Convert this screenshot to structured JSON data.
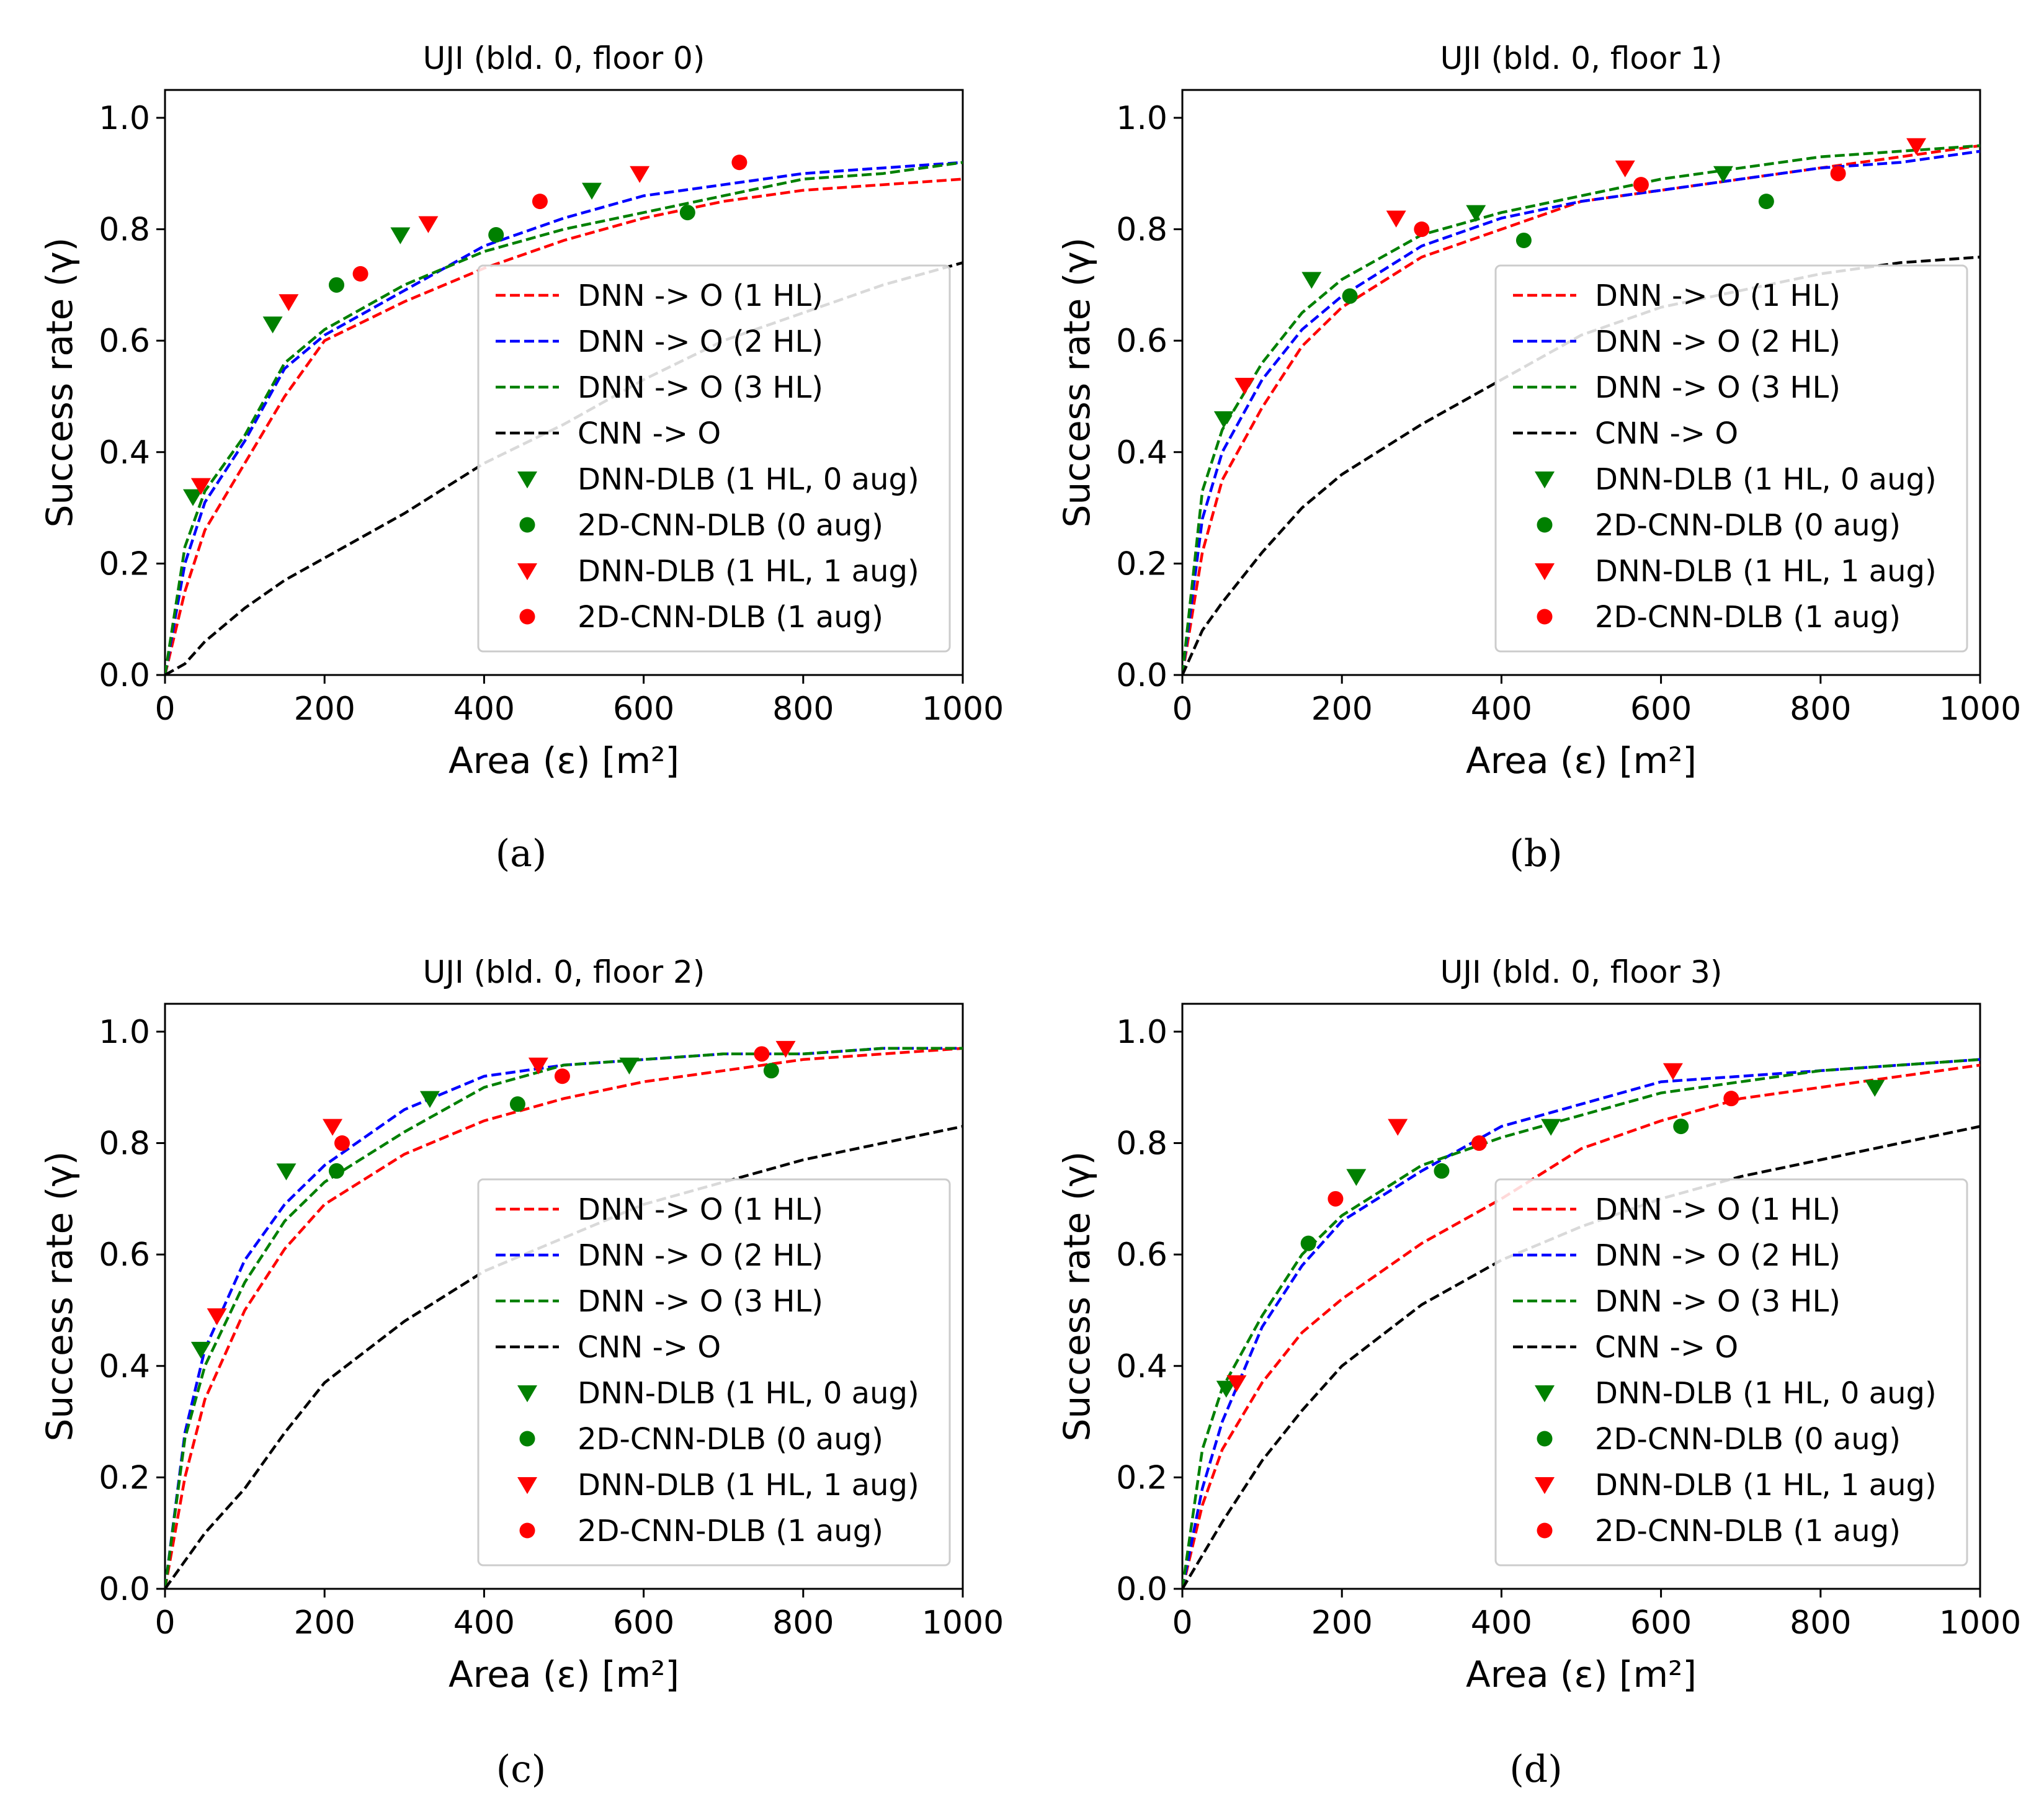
{
  "figure": {
    "panels": [
      "a",
      "b",
      "c",
      "d"
    ]
  },
  "chart_data": [
    {
      "type": "line",
      "title": "UJI (bld. 0, floor 0)",
      "caption": "(a)",
      "xlabel": "Area (ε) [m²]",
      "ylabel": "Success rate (γ)",
      "xlim": [
        0,
        1000
      ],
      "ylim": [
        0,
        1.05
      ],
      "xticks": [
        "0",
        "200",
        "400",
        "600",
        "800",
        "1000"
      ],
      "yticks": [
        "0.0",
        "0.2",
        "0.4",
        "0.6",
        "0.8",
        "1.0"
      ],
      "grid": false,
      "legend_position": "center-right",
      "legend": [
        "DNN -> O (1 HL)",
        "DNN -> O (2 HL)",
        "DNN -> O (3 HL)",
        "CNN -> O",
        "DNN-DLB (1 HL, 0 aug)",
        "2D-CNN-DLB (0 aug)",
        "DNN-DLB (1 HL, 1 aug)",
        "2D-CNN-DLB (1 aug)"
      ],
      "series": [
        {
          "name": "DNN -> O (1 HL)",
          "kind": "line",
          "color": "#ff0000",
          "x": [
            0,
            25,
            50,
            100,
            150,
            200,
            300,
            400,
            500,
            600,
            700,
            800,
            900,
            1000
          ],
          "y": [
            0,
            0.15,
            0.26,
            0.38,
            0.5,
            0.6,
            0.67,
            0.73,
            0.78,
            0.82,
            0.85,
            0.87,
            0.88,
            0.89
          ]
        },
        {
          "name": "DNN -> O (2 HL)",
          "kind": "line",
          "color": "#0000ff",
          "x": [
            0,
            25,
            50,
            100,
            150,
            200,
            300,
            400,
            500,
            600,
            700,
            800,
            900,
            1000
          ],
          "y": [
            0,
            0.2,
            0.31,
            0.42,
            0.55,
            0.61,
            0.69,
            0.77,
            0.82,
            0.86,
            0.88,
            0.9,
            0.91,
            0.92
          ]
        },
        {
          "name": "DNN -> O (3 HL)",
          "kind": "line",
          "color": "#008000",
          "x": [
            0,
            25,
            50,
            100,
            150,
            200,
            300,
            400,
            500,
            600,
            700,
            800,
            900,
            1000
          ],
          "y": [
            0,
            0.23,
            0.33,
            0.43,
            0.56,
            0.62,
            0.7,
            0.76,
            0.8,
            0.83,
            0.86,
            0.89,
            0.9,
            0.92
          ]
        },
        {
          "name": "CNN -> O",
          "kind": "line",
          "color": "#000000",
          "x": [
            0,
            25,
            50,
            100,
            150,
            200,
            300,
            400,
            500,
            600,
            700,
            800,
            900,
            1000
          ],
          "y": [
            0,
            0.02,
            0.06,
            0.12,
            0.17,
            0.21,
            0.29,
            0.38,
            0.45,
            0.53,
            0.6,
            0.65,
            0.7,
            0.74
          ]
        },
        {
          "name": "DNN-DLB (1 HL, 0 aug)",
          "kind": "marker",
          "marker": "triangle-down",
          "color": "#008000",
          "x": [
            35,
            135,
            295,
            535
          ],
          "y": [
            0.32,
            0.63,
            0.79,
            0.87
          ]
        },
        {
          "name": "2D-CNN-DLB (0 aug)",
          "kind": "marker",
          "marker": "circle",
          "color": "#008000",
          "x": [
            215,
            415,
            655
          ],
          "y": [
            0.7,
            0.79,
            0.83
          ]
        },
        {
          "name": "DNN-DLB (1 HL, 1 aug)",
          "kind": "marker",
          "marker": "triangle-down",
          "color": "#ff0000",
          "x": [
            45,
            155,
            330,
            595
          ],
          "y": [
            0.34,
            0.67,
            0.81,
            0.9
          ]
        },
        {
          "name": "2D-CNN-DLB (1 aug)",
          "kind": "marker",
          "marker": "circle",
          "color": "#ff0000",
          "x": [
            245,
            470,
            720
          ],
          "y": [
            0.72,
            0.85,
            0.92
          ]
        }
      ]
    },
    {
      "type": "line",
      "title": "UJI (bld. 0, floor 1)",
      "caption": "(b)",
      "xlabel": "Area (ε) [m²]",
      "ylabel": "Success rate (γ)",
      "xlim": [
        0,
        1000
      ],
      "ylim": [
        0,
        1.05
      ],
      "xticks": [
        "0",
        "200",
        "400",
        "600",
        "800",
        "1000"
      ],
      "yticks": [
        "0.0",
        "0.2",
        "0.4",
        "0.6",
        "0.8",
        "1.0"
      ],
      "grid": false,
      "legend_position": "center-right",
      "legend": [
        "DNN -> O (1 HL)",
        "DNN -> O (2 HL)",
        "DNN -> O (3 HL)",
        "CNN -> O",
        "DNN-DLB (1 HL, 0 aug)",
        "2D-CNN-DLB (0 aug)",
        "DNN-DLB (1 HL, 1 aug)",
        "2D-CNN-DLB (1 aug)"
      ],
      "series": [
        {
          "name": "DNN -> O (1 HL)",
          "kind": "line",
          "color": "#ff0000",
          "x": [
            0,
            25,
            50,
            100,
            150,
            200,
            300,
            400,
            500,
            600,
            700,
            800,
            900,
            1000
          ],
          "y": [
            0,
            0.22,
            0.35,
            0.48,
            0.59,
            0.66,
            0.75,
            0.8,
            0.85,
            0.87,
            0.89,
            0.91,
            0.93,
            0.95
          ]
        },
        {
          "name": "DNN -> O (2 HL)",
          "kind": "line",
          "color": "#0000ff",
          "x": [
            0,
            25,
            50,
            100,
            150,
            200,
            300,
            400,
            500,
            600,
            700,
            800,
            900,
            1000
          ],
          "y": [
            0,
            0.28,
            0.4,
            0.53,
            0.62,
            0.68,
            0.77,
            0.82,
            0.85,
            0.87,
            0.89,
            0.91,
            0.92,
            0.94
          ]
        },
        {
          "name": "DNN -> O (3 HL)",
          "kind": "line",
          "color": "#008000",
          "x": [
            0,
            25,
            50,
            100,
            150,
            200,
            300,
            400,
            500,
            600,
            700,
            800,
            900,
            1000
          ],
          "y": [
            0,
            0.33,
            0.44,
            0.56,
            0.65,
            0.71,
            0.79,
            0.83,
            0.86,
            0.89,
            0.91,
            0.93,
            0.94,
            0.95
          ]
        },
        {
          "name": "CNN -> O",
          "kind": "line",
          "color": "#000000",
          "x": [
            0,
            25,
            50,
            100,
            150,
            200,
            300,
            400,
            500,
            600,
            700,
            800,
            900,
            1000
          ],
          "y": [
            0,
            0.08,
            0.13,
            0.22,
            0.3,
            0.36,
            0.45,
            0.53,
            0.61,
            0.66,
            0.69,
            0.72,
            0.74,
            0.75
          ]
        },
        {
          "name": "DNN-DLB (1 HL, 0 aug)",
          "kind": "marker",
          "marker": "triangle-down",
          "color": "#008000",
          "x": [
            52,
            162,
            368,
            678
          ],
          "y": [
            0.46,
            0.71,
            0.83,
            0.9
          ]
        },
        {
          "name": "2D-CNN-DLB (0 aug)",
          "kind": "marker",
          "marker": "circle",
          "color": "#008000",
          "x": [
            210,
            428,
            732
          ],
          "y": [
            0.68,
            0.78,
            0.85
          ]
        },
        {
          "name": "DNN-DLB (1 HL, 1 aug)",
          "kind": "marker",
          "marker": "triangle-down",
          "color": "#ff0000",
          "x": [
            78,
            268,
            555,
            920
          ],
          "y": [
            0.52,
            0.82,
            0.91,
            0.95
          ]
        },
        {
          "name": "2D-CNN-DLB (1 aug)",
          "kind": "marker",
          "marker": "circle",
          "color": "#ff0000",
          "x": [
            300,
            575,
            822
          ],
          "y": [
            0.8,
            0.88,
            0.9
          ]
        }
      ]
    },
    {
      "type": "line",
      "title": "UJI (bld. 0, floor 2)",
      "caption": "(c)",
      "xlabel": "Area (ε) [m²]",
      "ylabel": "Success rate (γ)",
      "xlim": [
        0,
        1000
      ],
      "ylim": [
        0,
        1.05
      ],
      "xticks": [
        "0",
        "200",
        "400",
        "600",
        "800",
        "1000"
      ],
      "yticks": [
        "0.0",
        "0.2",
        "0.4",
        "0.6",
        "0.8",
        "1.0"
      ],
      "grid": false,
      "legend_position": "center-right",
      "legend": [
        "DNN -> O (1 HL)",
        "DNN -> O (2 HL)",
        "DNN -> O (3 HL)",
        "CNN -> O",
        "DNN-DLB (1 HL, 0 aug)",
        "2D-CNN-DLB (0 aug)",
        "DNN-DLB (1 HL, 1 aug)",
        "2D-CNN-DLB (1 aug)"
      ],
      "series": [
        {
          "name": "DNN -> O (1 HL)",
          "kind": "line",
          "color": "#ff0000",
          "x": [
            0,
            25,
            50,
            100,
            150,
            200,
            300,
            400,
            500,
            600,
            700,
            800,
            900,
            1000
          ],
          "y": [
            0,
            0.2,
            0.34,
            0.5,
            0.61,
            0.69,
            0.78,
            0.84,
            0.88,
            0.91,
            0.93,
            0.95,
            0.96,
            0.97
          ]
        },
        {
          "name": "DNN -> O (2 HL)",
          "kind": "line",
          "color": "#0000ff",
          "x": [
            0,
            25,
            50,
            100,
            150,
            200,
            300,
            400,
            500,
            600,
            700,
            800,
            900,
            1000
          ],
          "y": [
            0,
            0.28,
            0.43,
            0.59,
            0.69,
            0.76,
            0.86,
            0.92,
            0.94,
            0.95,
            0.96,
            0.96,
            0.97,
            0.97
          ]
        },
        {
          "name": "DNN -> O (3 HL)",
          "kind": "line",
          "color": "#008000",
          "x": [
            0,
            25,
            50,
            100,
            150,
            200,
            300,
            400,
            500,
            600,
            700,
            800,
            900,
            1000
          ],
          "y": [
            0,
            0.27,
            0.4,
            0.55,
            0.66,
            0.73,
            0.82,
            0.9,
            0.94,
            0.95,
            0.96,
            0.96,
            0.97,
            0.97
          ]
        },
        {
          "name": "CNN -> O",
          "kind": "line",
          "color": "#000000",
          "x": [
            0,
            25,
            50,
            100,
            150,
            200,
            300,
            400,
            500,
            600,
            700,
            800,
            900,
            1000
          ],
          "y": [
            0,
            0.05,
            0.1,
            0.18,
            0.28,
            0.37,
            0.48,
            0.57,
            0.63,
            0.69,
            0.73,
            0.77,
            0.8,
            0.83
          ]
        },
        {
          "name": "DNN-DLB (1 HL, 0 aug)",
          "kind": "marker",
          "marker": "triangle-down",
          "color": "#008000",
          "x": [
            45,
            152,
            332,
            582
          ],
          "y": [
            0.43,
            0.75,
            0.88,
            0.94
          ]
        },
        {
          "name": "2D-CNN-DLB (0 aug)",
          "kind": "marker",
          "marker": "circle",
          "color": "#008000",
          "x": [
            215,
            442,
            760
          ],
          "y": [
            0.75,
            0.87,
            0.93
          ]
        },
        {
          "name": "DNN-DLB (1 HL, 1 aug)",
          "kind": "marker",
          "marker": "triangle-down",
          "color": "#ff0000",
          "x": [
            65,
            210,
            468,
            778
          ],
          "y": [
            0.49,
            0.83,
            0.94,
            0.97
          ]
        },
        {
          "name": "2D-CNN-DLB (1 aug)",
          "kind": "marker",
          "marker": "circle",
          "color": "#ff0000",
          "x": [
            222,
            498,
            748
          ],
          "y": [
            0.8,
            0.92,
            0.96
          ]
        }
      ]
    },
    {
      "type": "line",
      "title": "UJI (bld. 0, floor 3)",
      "caption": "(d)",
      "xlabel": "Area (ε) [m²]",
      "ylabel": "Success rate (γ)",
      "xlim": [
        0,
        1000
      ],
      "ylim": [
        0,
        1.05
      ],
      "xticks": [
        "0",
        "200",
        "400",
        "600",
        "800",
        "1000"
      ],
      "yticks": [
        "0.0",
        "0.2",
        "0.4",
        "0.6",
        "0.8",
        "1.0"
      ],
      "grid": false,
      "legend_position": "center-right",
      "legend": [
        "DNN -> O (1 HL)",
        "DNN -> O (2 HL)",
        "DNN -> O (3 HL)",
        "CNN -> O",
        "DNN-DLB (1 HL, 0 aug)",
        "2D-CNN-DLB (0 aug)",
        "DNN-DLB (1 HL, 1 aug)",
        "2D-CNN-DLB (1 aug)"
      ],
      "series": [
        {
          "name": "DNN -> O (1 HL)",
          "kind": "line",
          "color": "#ff0000",
          "x": [
            0,
            25,
            50,
            100,
            150,
            200,
            300,
            400,
            500,
            600,
            700,
            800,
            900,
            1000
          ],
          "y": [
            0,
            0.15,
            0.25,
            0.37,
            0.46,
            0.52,
            0.62,
            0.7,
            0.79,
            0.84,
            0.88,
            0.9,
            0.92,
            0.94
          ]
        },
        {
          "name": "DNN -> O (2 HL)",
          "kind": "line",
          "color": "#0000ff",
          "x": [
            0,
            25,
            50,
            100,
            150,
            200,
            300,
            400,
            500,
            600,
            700,
            800,
            900,
            1000
          ],
          "y": [
            0,
            0.18,
            0.3,
            0.47,
            0.58,
            0.66,
            0.75,
            0.83,
            0.87,
            0.91,
            0.92,
            0.93,
            0.94,
            0.95
          ]
        },
        {
          "name": "DNN -> O (3 HL)",
          "kind": "line",
          "color": "#008000",
          "x": [
            0,
            25,
            50,
            100,
            150,
            200,
            300,
            400,
            500,
            600,
            700,
            800,
            900,
            1000
          ],
          "y": [
            0,
            0.25,
            0.36,
            0.49,
            0.6,
            0.67,
            0.76,
            0.81,
            0.85,
            0.89,
            0.91,
            0.93,
            0.94,
            0.95
          ]
        },
        {
          "name": "CNN -> O",
          "kind": "line",
          "color": "#000000",
          "x": [
            0,
            25,
            50,
            100,
            150,
            200,
            300,
            400,
            500,
            600,
            700,
            800,
            900,
            1000
          ],
          "y": [
            0,
            0.06,
            0.12,
            0.23,
            0.32,
            0.4,
            0.51,
            0.59,
            0.65,
            0.7,
            0.74,
            0.77,
            0.8,
            0.83
          ]
        },
        {
          "name": "DNN-DLB (1 HL, 0 aug)",
          "kind": "marker",
          "marker": "triangle-down",
          "color": "#008000",
          "x": [
            55,
            218,
            462,
            868
          ],
          "y": [
            0.36,
            0.74,
            0.83,
            0.9
          ]
        },
        {
          "name": "2D-CNN-DLB (0 aug)",
          "kind": "marker",
          "marker": "circle",
          "color": "#008000",
          "x": [
            158,
            325,
            625
          ],
          "y": [
            0.62,
            0.75,
            0.83
          ]
        },
        {
          "name": "DNN-DLB (1 HL, 1 aug)",
          "kind": "marker",
          "marker": "triangle-down",
          "color": "#ff0000",
          "x": [
            68,
            270,
            615
          ],
          "y": [
            0.37,
            0.83,
            0.93
          ]
        },
        {
          "name": "2D-CNN-DLB (1 aug)",
          "kind": "marker",
          "marker": "circle",
          "color": "#ff0000",
          "x": [
            192,
            372,
            688
          ],
          "y": [
            0.7,
            0.8,
            0.88
          ]
        }
      ]
    }
  ]
}
